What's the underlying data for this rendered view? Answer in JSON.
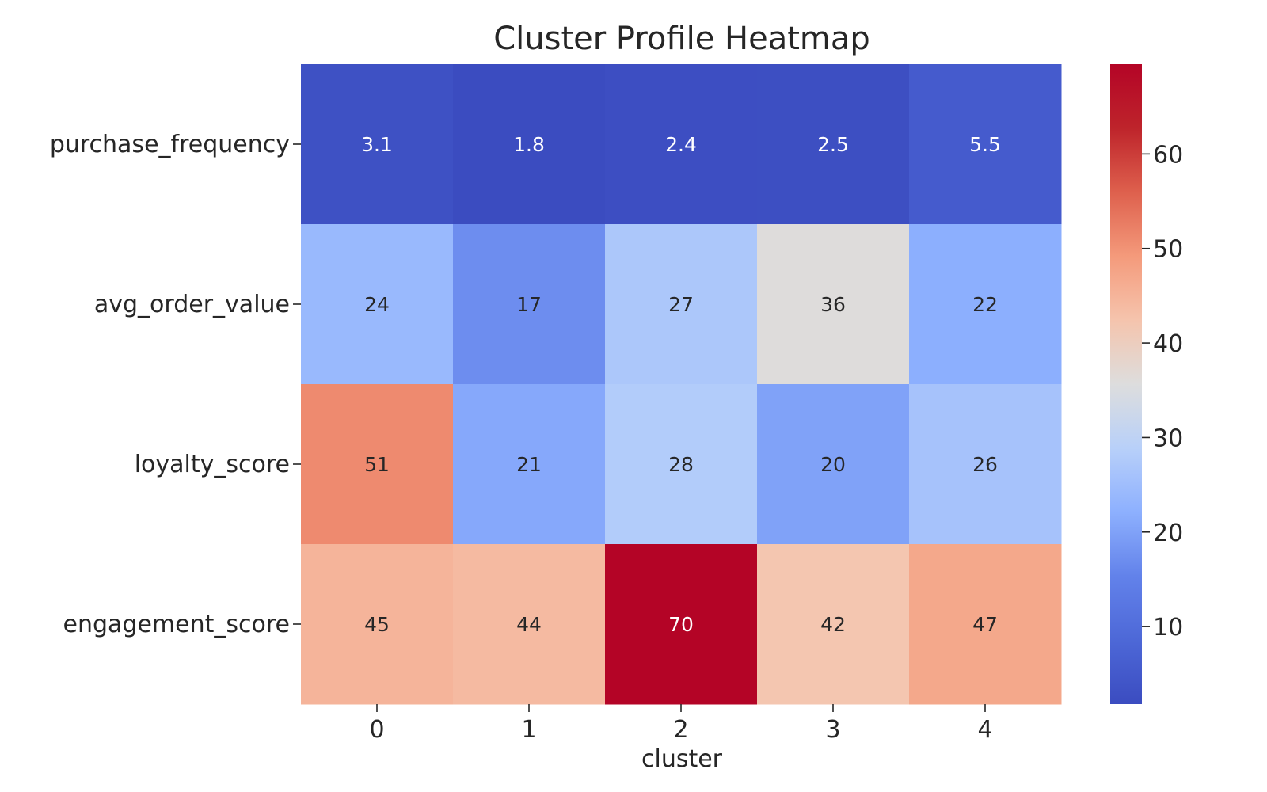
{
  "chart_data": {
    "type": "heatmap",
    "title": "Cluster Profile Heatmap",
    "xlabel": "cluster",
    "ylabel": "",
    "x_categories": [
      "0",
      "1",
      "2",
      "3",
      "4"
    ],
    "y_categories": [
      "purchase_frequency",
      "avg_order_value",
      "loyalty_score",
      "engagement_score"
    ],
    "values": [
      [
        3.1,
        1.8,
        2.4,
        2.5,
        5.5
      ],
      [
        24,
        17,
        27,
        36,
        22
      ],
      [
        51,
        21,
        28,
        20,
        26
      ],
      [
        45,
        44,
        70,
        42,
        47
      ]
    ],
    "value_labels": [
      [
        "3.1",
        "1.8",
        "2.4",
        "2.5",
        "5.5"
      ],
      [
        "24",
        "17",
        "27",
        "36",
        "22"
      ],
      [
        "51",
        "21",
        "28",
        "20",
        "26"
      ],
      [
        "45",
        "44",
        "70",
        "42",
        "47"
      ]
    ],
    "colormap": "coolwarm",
    "color_range": [
      1.8,
      69.5
    ],
    "colorbar_ticks": [
      "10",
      "20",
      "30",
      "40",
      "50",
      "60"
    ],
    "colors": {
      "low": "#3b4cc0",
      "mid": "#dddddd",
      "high": "#b40426"
    }
  }
}
